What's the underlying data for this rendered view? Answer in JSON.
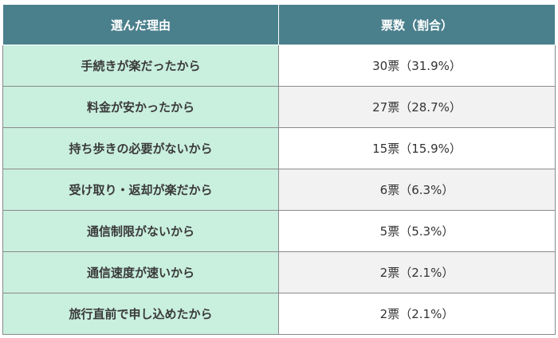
{
  "table": {
    "headers": [
      "選んだ理由",
      "票数（割合）"
    ],
    "rows": [
      {
        "reason": "手続きが楽だったから",
        "count": "30票（31.9%）"
      },
      {
        "reason": "料金が安かったから",
        "count": "27票（28.7%）"
      },
      {
        "reason": "持ち歩きの必要がないから",
        "count": "15票（15.9%）"
      },
      {
        "reason": "受け取り・返却が楽だから",
        "count": "6票（6.3%）"
      },
      {
        "reason": "通信制限がないから",
        "count": "5票（5.3%）"
      },
      {
        "reason": "通信速度が速いから",
        "count": "2票（2.1%）"
      },
      {
        "reason": "旅行直前で申し込めたから",
        "count": "2票（2.1%）"
      }
    ]
  },
  "colors": {
    "header_bg": "#4a7f8c",
    "reason_bg": "#c9efdf",
    "alt_row_bg": "#f2f2f2"
  }
}
